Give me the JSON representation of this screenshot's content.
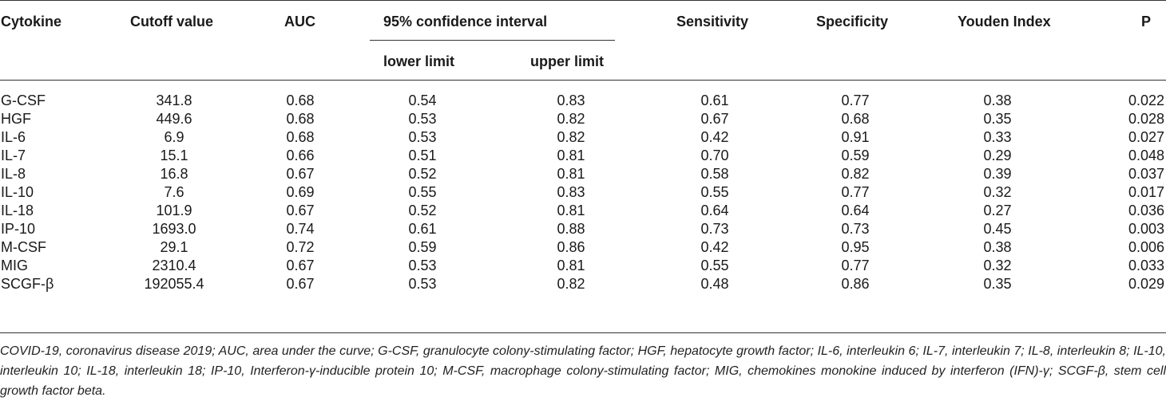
{
  "table": {
    "headers": {
      "cytokine": "Cytokine",
      "cutoff": "Cutoff value",
      "auc": "AUC",
      "ci": "95% confidence interval",
      "lower": "lower limit",
      "upper": "upper limit",
      "sensitivity": "Sensitivity",
      "specificity": "Specificity",
      "youden": "Youden Index",
      "p": "P"
    },
    "rows": [
      [
        "G-CSF",
        "341.8",
        "0.68",
        "0.54",
        "0.83",
        "0.61",
        "0.77",
        "0.38",
        "0.022"
      ],
      [
        "HGF",
        "449.6",
        "0.68",
        "0.53",
        "0.82",
        "0.67",
        "0.68",
        "0.35",
        "0.028"
      ],
      [
        "IL-6",
        "6.9",
        "0.68",
        "0.53",
        "0.82",
        "0.42",
        "0.91",
        "0.33",
        "0.027"
      ],
      [
        "IL-7",
        "15.1",
        "0.66",
        "0.51",
        "0.81",
        "0.70",
        "0.59",
        "0.29",
        "0.048"
      ],
      [
        "IL-8",
        "16.8",
        "0.67",
        "0.52",
        "0.81",
        "0.58",
        "0.82",
        "0.39",
        "0.037"
      ],
      [
        "IL-10",
        "7.6",
        "0.69",
        "0.55",
        "0.83",
        "0.55",
        "0.77",
        "0.32",
        "0.017"
      ],
      [
        "IL-18",
        "101.9",
        "0.67",
        "0.52",
        "0.81",
        "0.64",
        "0.64",
        "0.27",
        "0.036"
      ],
      [
        "IP-10",
        "1693.0",
        "0.74",
        "0.61",
        "0.88",
        "0.73",
        "0.73",
        "0.45",
        "0.003"
      ],
      [
        "M-CSF",
        "29.1",
        "0.72",
        "0.59",
        "0.86",
        "0.42",
        "0.95",
        "0.38",
        "0.006"
      ],
      [
        "MIG",
        "2310.4",
        "0.67",
        "0.53",
        "0.81",
        "0.55",
        "0.77",
        "0.32",
        "0.033"
      ],
      [
        "SCGF-β",
        "192055.4",
        "0.67",
        "0.53",
        "0.82",
        "0.48",
        "0.86",
        "0.35",
        "0.029"
      ]
    ]
  },
  "footnote": "COVID-19, coronavirus disease 2019; AUC, area under the curve; G-CSF, granulocyte colony-stimulating factor; HGF, hepatocyte growth factor; IL-6, interleukin 6; IL-7, interleukin 7; IL-8, interleukin 8; IL-10, interleukin 10; IL-18, interleukin 18; IP-10, Interferon-γ-inducible protein 10; M-CSF, macrophage colony-stimulating factor; MIG, chemokines monokine induced by interferon (IFN)-γ; SCGF-β, stem cell growth factor beta."
}
